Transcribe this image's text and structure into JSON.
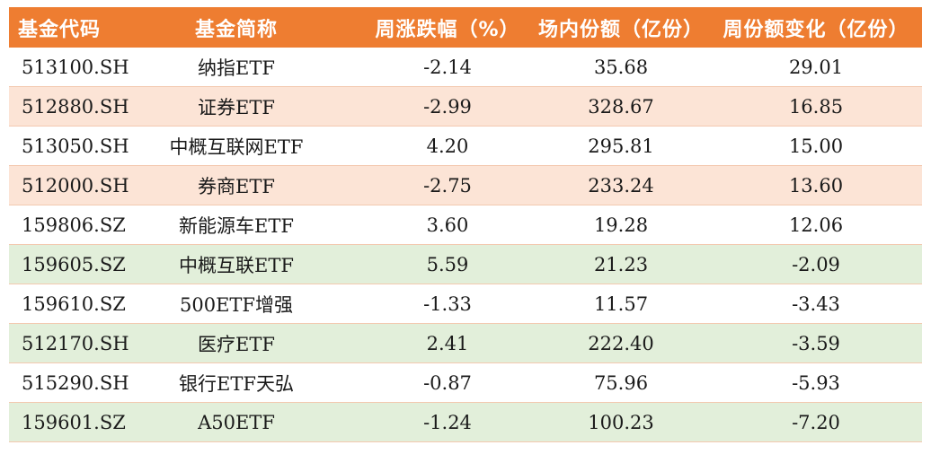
{
  "table": {
    "columns": [
      "基金代码",
      "基金简称",
      "周涨跌幅（%）",
      "场内份额（亿份）",
      "周份额变化（亿份）"
    ],
    "rows": [
      {
        "code": "513100.SH",
        "name": "纳指ETF",
        "weekly_change": "-2.14",
        "shares": "35.68",
        "share_change": "29.01",
        "bg": "white"
      },
      {
        "code": "512880.SH",
        "name": "证券ETF",
        "weekly_change": "-2.99",
        "shares": "328.67",
        "share_change": "16.85",
        "bg": "peach"
      },
      {
        "code": "513050.SH",
        "name": "中概互联网ETF",
        "weekly_change": "4.20",
        "shares": "295.81",
        "share_change": "15.00",
        "bg": "white"
      },
      {
        "code": "512000.SH",
        "name": "券商ETF",
        "weekly_change": "-2.75",
        "shares": "233.24",
        "share_change": "13.60",
        "bg": "peach"
      },
      {
        "code": "159806.SZ",
        "name": "新能源车ETF",
        "weekly_change": "3.60",
        "shares": "19.28",
        "share_change": "12.06",
        "bg": "white"
      },
      {
        "code": "159605.SZ",
        "name": "中概互联ETF",
        "weekly_change": "5.59",
        "shares": "21.23",
        "share_change": "-2.09",
        "bg": "green"
      },
      {
        "code": "159610.SZ",
        "name": "500ETF增强",
        "weekly_change": "-1.33",
        "shares": "11.57",
        "share_change": "-3.43",
        "bg": "white"
      },
      {
        "code": "512170.SH",
        "name": "医疗ETF",
        "weekly_change": "2.41",
        "shares": "222.40",
        "share_change": "-3.59",
        "bg": "green"
      },
      {
        "code": "515290.SH",
        "name": "银行ETF天弘",
        "weekly_change": "-0.87",
        "shares": "75.96",
        "share_change": "-5.93",
        "bg": "white"
      },
      {
        "code": "159601.SZ",
        "name": "A50ETF",
        "weekly_change": "-1.24",
        "shares": "100.23",
        "share_change": "-7.20",
        "bg": "green"
      }
    ]
  },
  "colors": {
    "header": "#ee7d31",
    "peach": "#fce4d6",
    "green": "#e2efda",
    "white": "#ffffff"
  }
}
